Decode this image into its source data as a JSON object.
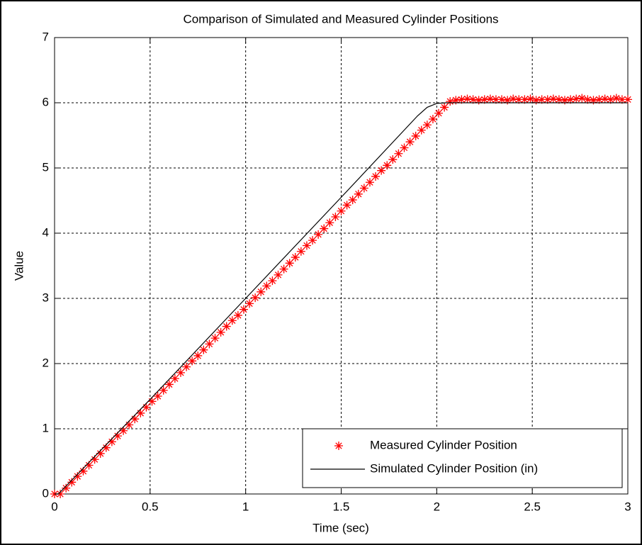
{
  "chart_data": {
    "type": "line",
    "title": "Comparison of Simulated and Measured Cylinder Positions",
    "xlabel": "Time (sec)",
    "ylabel": "Value",
    "xlim": [
      0,
      3
    ],
    "ylim": [
      0,
      7
    ],
    "xticks": [
      0,
      0.5,
      1,
      1.5,
      2,
      2.5,
      3
    ],
    "yticks": [
      0,
      1,
      2,
      3,
      4,
      5,
      6,
      7
    ],
    "grid": true,
    "legend": "lower right",
    "series": [
      {
        "name": "Measured Cylinder Position",
        "color": "#ff0000",
        "marker": "*",
        "x": [
          0,
          0.03,
          0.06,
          0.09,
          0.12,
          0.15,
          0.18,
          0.21,
          0.24,
          0.27,
          0.3,
          0.33,
          0.36,
          0.39,
          0.42,
          0.45,
          0.48,
          0.51,
          0.54,
          0.57,
          0.6,
          0.63,
          0.66,
          0.69,
          0.72,
          0.75,
          0.78,
          0.81,
          0.84,
          0.87,
          0.9,
          0.93,
          0.96,
          0.99,
          1.02,
          1.05,
          1.08,
          1.11,
          1.14,
          1.17,
          1.2,
          1.23,
          1.26,
          1.29,
          1.32,
          1.35,
          1.38,
          1.41,
          1.44,
          1.47,
          1.5,
          1.53,
          1.56,
          1.59,
          1.62,
          1.65,
          1.68,
          1.71,
          1.74,
          1.77,
          1.8,
          1.83,
          1.86,
          1.89,
          1.92,
          1.95,
          1.98,
          2.01,
          2.04,
          2.07,
          2.1,
          2.13,
          2.16,
          2.19,
          2.22,
          2.25,
          2.28,
          2.31,
          2.34,
          2.37,
          2.4,
          2.43,
          2.46,
          2.49,
          2.52,
          2.55,
          2.58,
          2.61,
          2.64,
          2.67,
          2.7,
          2.73,
          2.76,
          2.79,
          2.82,
          2.85,
          2.88,
          2.91,
          2.94,
          2.97,
          3.0
        ],
        "values": [
          0,
          0,
          0.09,
          0.18,
          0.27,
          0.35,
          0.44,
          0.53,
          0.62,
          0.71,
          0.8,
          0.89,
          0.97,
          1.06,
          1.15,
          1.24,
          1.33,
          1.42,
          1.5,
          1.59,
          1.68,
          1.77,
          1.86,
          1.95,
          2.04,
          2.12,
          2.21,
          2.3,
          2.39,
          2.48,
          2.57,
          2.66,
          2.74,
          2.83,
          2.92,
          3.01,
          3.1,
          3.19,
          3.27,
          3.36,
          3.45,
          3.54,
          3.63,
          3.72,
          3.81,
          3.89,
          3.98,
          4.07,
          4.16,
          4.25,
          4.34,
          4.43,
          4.51,
          4.6,
          4.69,
          4.78,
          4.87,
          4.96,
          5.04,
          5.13,
          5.22,
          5.31,
          5.4,
          5.49,
          5.58,
          5.66,
          5.75,
          5.84,
          5.93,
          6.02,
          6.04,
          6.05,
          6.06,
          6.05,
          6.04,
          6.05,
          6.06,
          6.05,
          6.05,
          6.04,
          6.06,
          6.05,
          6.05,
          6.06,
          6.04,
          6.05,
          6.05,
          6.06,
          6.05,
          6.04,
          6.05,
          6.06,
          6.07,
          6.05,
          6.04,
          6.05,
          6.06,
          6.05,
          6.07,
          6.05,
          6.05
        ]
      },
      {
        "name": "Simulated Cylinder Position (in)",
        "color": "#000000",
        "x": [
          0,
          0.02,
          0.5,
          1,
          1.5,
          1.9,
          1.95,
          2.0,
          2.05,
          3
        ],
        "values": [
          0,
          0,
          1.45,
          3.0,
          4.55,
          5.8,
          5.93,
          5.99,
          6.0,
          6.0
        ]
      }
    ]
  }
}
